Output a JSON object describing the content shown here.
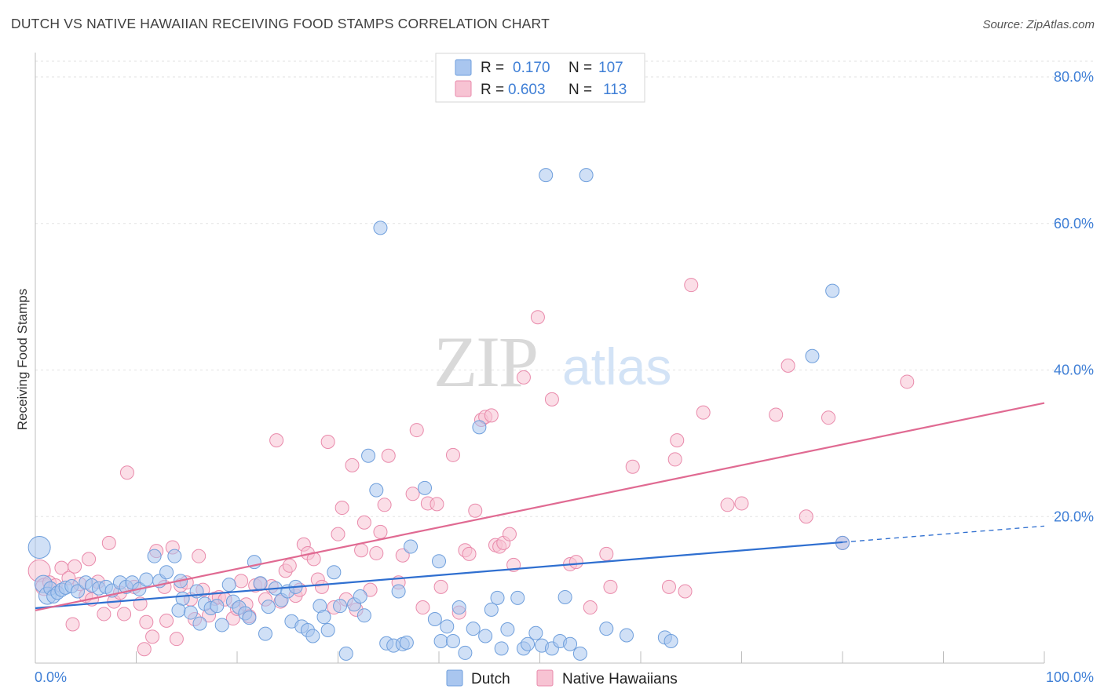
{
  "title": "DUTCH VS NATIVE HAWAIIAN RECEIVING FOOD STAMPS CORRELATION CHART",
  "source": "Source: ZipAtlas.com",
  "watermark": {
    "zip": "ZIP",
    "atlas": "atlas"
  },
  "legend": {
    "rows": [
      {
        "r_label": "R =",
        "r_value": "0.170",
        "n_label": "N =",
        "n_value": "107",
        "color": "#a9c6ef",
        "stroke": "#6f9fdc"
      },
      {
        "r_label": "R =",
        "r_value": "0.603",
        "n_label": "N =",
        "n_value": "113",
        "color": "#f7c3d3",
        "stroke": "#e98aab"
      }
    ]
  },
  "bottom_legend": [
    {
      "label": "Dutch",
      "color": "#a9c6ef",
      "stroke": "#6f9fdc"
    },
    {
      "label": "Native Hawaiians",
      "color": "#f7c3d3",
      "stroke": "#e98aab"
    }
  ],
  "chart_data": {
    "type": "scatter",
    "title": "DUTCH VS NATIVE HAWAIIAN RECEIVING FOOD STAMPS CORRELATION CHART",
    "xlabel": "",
    "ylabel": "Receiving Food Stamps",
    "xlim": [
      0,
      100
    ],
    "ylim": [
      0,
      80
    ],
    "x_tick_labels": [
      "0.0%",
      "100.0%"
    ],
    "y_ticks": [
      20,
      40,
      60,
      80
    ],
    "y_tick_labels": [
      "20.0%",
      "40.0%",
      "60.0%",
      "80.0%"
    ],
    "grid": true,
    "legend_position": "top-center",
    "series": [
      {
        "name": "Dutch",
        "color": "#a9c6ef",
        "stroke": "#6f9fdc",
        "trend": {
          "x0": 0,
          "y0": 7.5,
          "x1": 80,
          "y1": 16.5,
          "dash_to_x": 100,
          "dash_to_y": 18.7,
          "color": "#2f6fd0"
        },
        "points": [
          [
            0.4,
            15.8,
            3
          ],
          [
            0.8,
            10.8,
            2
          ],
          [
            1.2,
            9.2,
            2
          ],
          [
            1.5,
            10.2,
            1
          ],
          [
            1.8,
            9.1,
            1
          ],
          [
            2.2,
            9.6,
            1
          ],
          [
            2.6,
            10.0,
            1
          ],
          [
            3.0,
            10.3,
            1
          ],
          [
            3.6,
            10.5,
            1
          ],
          [
            4.2,
            9.8,
            1
          ],
          [
            5.0,
            11.0,
            1
          ],
          [
            5.6,
            10.6,
            1
          ],
          [
            6.3,
            10.2,
            1
          ],
          [
            7.0,
            10.4,
            1
          ],
          [
            7.6,
            9.9,
            1
          ],
          [
            8.4,
            11.0,
            1
          ],
          [
            9.0,
            10.4,
            1
          ],
          [
            9.6,
            11.0,
            1
          ],
          [
            10.3,
            10.1,
            1
          ],
          [
            11.0,
            11.4,
            1
          ],
          [
            11.8,
            14.6,
            1
          ],
          [
            12.3,
            11.2,
            1
          ],
          [
            13.0,
            12.4,
            1
          ],
          [
            13.8,
            14.6,
            1
          ],
          [
            14.4,
            11.2,
            1
          ],
          [
            14.6,
            8.8,
            1
          ],
          [
            14.2,
            7.2,
            1
          ],
          [
            15.4,
            6.9,
            1
          ],
          [
            16.0,
            9.8,
            1
          ],
          [
            16.3,
            5.4,
            1
          ],
          [
            16.8,
            8.1,
            1
          ],
          [
            17.4,
            7.5,
            1
          ],
          [
            18.0,
            7.8,
            1
          ],
          [
            18.5,
            5.2,
            1
          ],
          [
            19.2,
            10.7,
            1
          ],
          [
            19.6,
            8.4,
            1
          ],
          [
            20.2,
            7.6,
            1
          ],
          [
            20.8,
            6.8,
            1
          ],
          [
            21.2,
            6.2,
            1
          ],
          [
            21.7,
            13.8,
            1
          ],
          [
            22.3,
            10.9,
            1
          ],
          [
            22.8,
            4.0,
            1
          ],
          [
            23.1,
            7.7,
            1
          ],
          [
            23.8,
            10.2,
            1
          ],
          [
            24.4,
            8.6,
            1
          ],
          [
            25.0,
            9.8,
            1
          ],
          [
            25.4,
            5.7,
            1
          ],
          [
            25.8,
            10.4,
            1
          ],
          [
            26.4,
            5.0,
            1
          ],
          [
            27.0,
            4.5,
            1
          ],
          [
            27.5,
            3.7,
            1
          ],
          [
            28.2,
            7.8,
            1
          ],
          [
            28.6,
            6.3,
            1
          ],
          [
            29.0,
            4.5,
            1
          ],
          [
            29.6,
            12.4,
            1
          ],
          [
            30.2,
            7.8,
            1
          ],
          [
            30.8,
            1.3,
            1
          ],
          [
            31.6,
            8.0,
            1
          ],
          [
            32.2,
            9.1,
            1
          ],
          [
            32.6,
            6.5,
            1
          ],
          [
            33.0,
            28.3,
            1
          ],
          [
            33.8,
            23.6,
            1
          ],
          [
            34.2,
            59.4,
            1
          ],
          [
            34.8,
            2.7,
            1
          ],
          [
            35.5,
            2.4,
            1
          ],
          [
            36.0,
            9.8,
            1
          ],
          [
            36.4,
            2.6,
            1
          ],
          [
            36.8,
            2.8,
            1
          ],
          [
            37.2,
            15.9,
            1
          ],
          [
            38.6,
            23.9,
            1
          ],
          [
            39.6,
            6.0,
            1
          ],
          [
            40.0,
            13.9,
            1
          ],
          [
            40.2,
            3.0,
            1
          ],
          [
            40.8,
            5.0,
            1
          ],
          [
            41.4,
            3.0,
            1
          ],
          [
            42.0,
            7.6,
            1
          ],
          [
            42.6,
            1.4,
            1
          ],
          [
            43.4,
            4.7,
            1
          ],
          [
            44.0,
            32.2,
            1
          ],
          [
            44.6,
            3.7,
            1
          ],
          [
            45.2,
            7.3,
            1
          ],
          [
            45.8,
            8.9,
            1
          ],
          [
            46.2,
            2.0,
            1
          ],
          [
            46.8,
            4.6,
            1
          ],
          [
            47.8,
            8.9,
            1
          ],
          [
            48.4,
            2.0,
            1
          ],
          [
            48.8,
            2.6,
            1
          ],
          [
            49.6,
            4.1,
            1
          ],
          [
            50.2,
            2.4,
            1
          ],
          [
            50.6,
            66.6,
            1
          ],
          [
            51.2,
            2.0,
            1
          ],
          [
            52.0,
            3.0,
            1
          ],
          [
            52.5,
            9.0,
            1
          ],
          [
            53.0,
            2.6,
            1
          ],
          [
            54.0,
            1.3,
            1
          ],
          [
            54.6,
            66.6,
            1
          ],
          [
            56.6,
            4.7,
            1
          ],
          [
            58.6,
            3.8,
            1
          ],
          [
            62.4,
            3.5,
            1
          ],
          [
            63.0,
            3.0,
            1
          ],
          [
            77.0,
            41.9,
            1
          ],
          [
            79.0,
            50.8,
            1
          ],
          [
            80.0,
            16.4,
            1
          ]
        ]
      },
      {
        "name": "Native Hawaiians",
        "color": "#f7c3d3",
        "stroke": "#e98aab",
        "trend": {
          "x0": 0,
          "y0": 7.2,
          "x1": 100,
          "y1": 35.5,
          "color": "#e06a92"
        },
        "points": [
          [
            0.4,
            12.6,
            3
          ],
          [
            0.9,
            10.4,
            2
          ],
          [
            1.4,
            11.0,
            1
          ],
          [
            2.0,
            10.6,
            1
          ],
          [
            2.6,
            13.0,
            1
          ],
          [
            3.3,
            11.6,
            1
          ],
          [
            3.9,
            13.2,
            1
          ],
          [
            3.7,
            5.3,
            1
          ],
          [
            4.4,
            10.8,
            1
          ],
          [
            5.0,
            9.2,
            1
          ],
          [
            5.3,
            14.2,
            1
          ],
          [
            5.6,
            8.7,
            1
          ],
          [
            6.2,
            11.1,
            1
          ],
          [
            6.8,
            6.7,
            1
          ],
          [
            7.3,
            16.4,
            1
          ],
          [
            7.8,
            8.4,
            1
          ],
          [
            8.4,
            9.6,
            1
          ],
          [
            8.8,
            6.7,
            1
          ],
          [
            9.1,
            26.0,
            1
          ],
          [
            9.8,
            10.4,
            1
          ],
          [
            10.4,
            8.1,
            1
          ],
          [
            10.8,
            1.9,
            1
          ],
          [
            11.0,
            5.6,
            1
          ],
          [
            11.6,
            3.6,
            1
          ],
          [
            12.0,
            15.3,
            1
          ],
          [
            12.8,
            10.4,
            1
          ],
          [
            13.0,
            5.8,
            1
          ],
          [
            13.6,
            15.8,
            1
          ],
          [
            14.0,
            3.3,
            1
          ],
          [
            14.4,
            10.6,
            1
          ],
          [
            15.0,
            11.0,
            1
          ],
          [
            15.4,
            8.7,
            1
          ],
          [
            15.8,
            6.0,
            1
          ],
          [
            16.2,
            14.6,
            1
          ],
          [
            16.6,
            10.0,
            1
          ],
          [
            17.2,
            6.5,
            1
          ],
          [
            17.8,
            8.8,
            1
          ],
          [
            18.2,
            9.0,
            1
          ],
          [
            18.8,
            8.7,
            1
          ],
          [
            19.6,
            6.1,
            1
          ],
          [
            20.0,
            7.4,
            1
          ],
          [
            20.4,
            11.2,
            1
          ],
          [
            20.9,
            8.0,
            1
          ],
          [
            21.2,
            6.4,
            1
          ],
          [
            21.8,
            10.6,
            1
          ],
          [
            22.3,
            10.8,
            1
          ],
          [
            22.8,
            8.7,
            1
          ],
          [
            23.4,
            10.5,
            1
          ],
          [
            23.9,
            30.4,
            1
          ],
          [
            24.3,
            8.4,
            1
          ],
          [
            24.8,
            12.6,
            1
          ],
          [
            25.2,
            13.3,
            1
          ],
          [
            25.8,
            9.2,
            1
          ],
          [
            26.2,
            10.0,
            1
          ],
          [
            26.6,
            16.2,
            1
          ],
          [
            27.0,
            15.0,
            1
          ],
          [
            27.6,
            14.2,
            1
          ],
          [
            28.0,
            11.4,
            1
          ],
          [
            28.4,
            10.4,
            1
          ],
          [
            29.0,
            30.2,
            1
          ],
          [
            29.6,
            7.6,
            1
          ],
          [
            30.0,
            17.6,
            1
          ],
          [
            30.4,
            21.2,
            1
          ],
          [
            30.8,
            8.7,
            1
          ],
          [
            31.4,
            27.0,
            1
          ],
          [
            31.8,
            7.3,
            1
          ],
          [
            32.3,
            15.4,
            1
          ],
          [
            32.6,
            19.2,
            1
          ],
          [
            33.2,
            10.0,
            1
          ],
          [
            33.8,
            15.0,
            1
          ],
          [
            34.2,
            17.9,
            1
          ],
          [
            34.6,
            21.6,
            1
          ],
          [
            35.0,
            28.3,
            1
          ],
          [
            36.0,
            11.0,
            1
          ],
          [
            36.4,
            14.7,
            1
          ],
          [
            37.4,
            23.1,
            1
          ],
          [
            37.8,
            31.8,
            1
          ],
          [
            38.4,
            7.6,
            1
          ],
          [
            38.9,
            21.8,
            1
          ],
          [
            39.8,
            21.7,
            1
          ],
          [
            40.2,
            10.4,
            1
          ],
          [
            41.4,
            28.4,
            1
          ],
          [
            42.0,
            6.9,
            1
          ],
          [
            42.6,
            15.4,
            1
          ],
          [
            43.0,
            14.9,
            1
          ],
          [
            43.6,
            20.8,
            1
          ],
          [
            44.2,
            33.2,
            1
          ],
          [
            44.6,
            33.6,
            1
          ],
          [
            45.2,
            33.8,
            1
          ],
          [
            45.6,
            16.1,
            1
          ],
          [
            46.0,
            15.9,
            1
          ],
          [
            46.4,
            16.4,
            1
          ],
          [
            47.0,
            17.6,
            1
          ],
          [
            47.4,
            13.4,
            1
          ],
          [
            48.4,
            39.0,
            1
          ],
          [
            49.8,
            47.2,
            1
          ],
          [
            51.2,
            36.0,
            1
          ],
          [
            53.0,
            13.5,
            1
          ],
          [
            53.6,
            13.8,
            1
          ],
          [
            55.0,
            7.6,
            1
          ],
          [
            56.6,
            14.9,
            1
          ],
          [
            57.0,
            10.4,
            1
          ],
          [
            59.2,
            26.8,
            1
          ],
          [
            62.8,
            10.4,
            1
          ],
          [
            63.4,
            27.8,
            1
          ],
          [
            63.6,
            30.4,
            1
          ],
          [
            64.4,
            9.8,
            1
          ],
          [
            65.0,
            51.6,
            1
          ],
          [
            66.2,
            34.2,
            1
          ],
          [
            68.6,
            21.6,
            1
          ],
          [
            70.0,
            21.8,
            1
          ],
          [
            73.4,
            33.9,
            1
          ],
          [
            74.6,
            40.6,
            1
          ],
          [
            76.4,
            20.0,
            1
          ],
          [
            78.6,
            33.5,
            1
          ],
          [
            80.0,
            16.4,
            1
          ],
          [
            86.4,
            38.4,
            1
          ]
        ]
      }
    ]
  }
}
